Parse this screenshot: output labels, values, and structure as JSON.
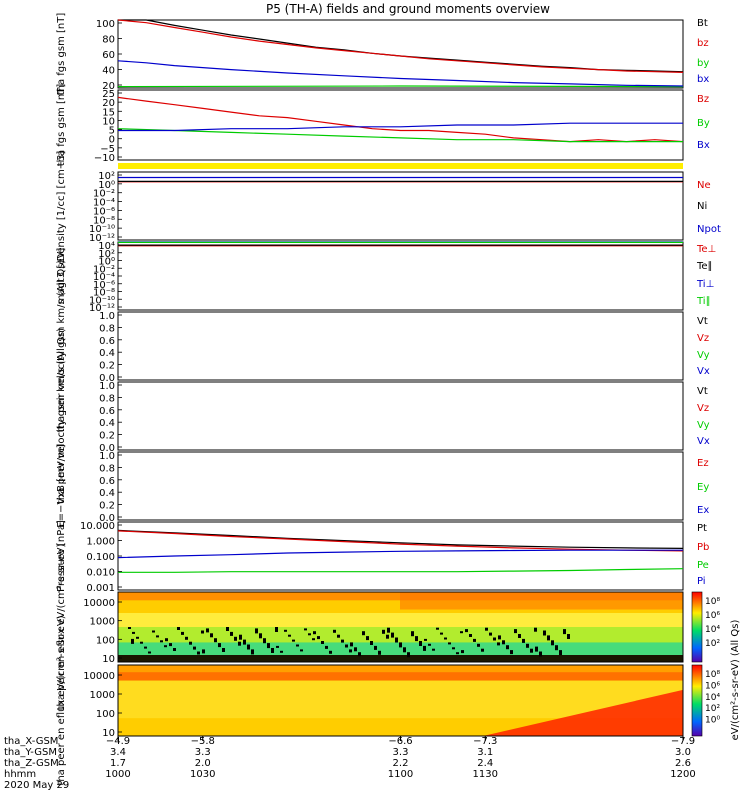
{
  "title": "P5 (TH-A) fields and ground moments overview",
  "colors": {
    "black": "#000000",
    "red": "#dd0000",
    "green": "#00cc00",
    "blue": "#0000cc",
    "yellow": "#ffee00"
  },
  "chart_data": [
    {
      "type": "line",
      "ylabel": "tha fgs gsm [nT]",
      "ylim": [
        0,
        100
      ],
      "yticks": [
        "100",
        "80",
        "60",
        "40",
        "20"
      ],
      "series": [
        {
          "name": "Bt",
          "color": "black",
          "x": [
            1000,
            1010,
            1020,
            1030,
            1040,
            1050,
            1060,
            1070,
            1080,
            1090,
            1100,
            1110,
            1120,
            1130,
            1140,
            1150,
            1160,
            1170,
            1180,
            1190,
            1200
          ],
          "values": [
            107,
            100,
            92,
            85,
            78,
            72,
            66,
            60,
            56,
            51,
            47,
            44,
            41,
            38,
            35,
            32,
            30,
            27,
            26,
            25,
            24
          ]
        },
        {
          "name": "bz",
          "color": "red",
          "x": [
            1000,
            1010,
            1020,
            1030,
            1040,
            1050,
            1060,
            1070,
            1080,
            1090,
            1100,
            1110,
            1120,
            1130,
            1140,
            1150,
            1160,
            1170,
            1180,
            1190,
            1200
          ],
          "values": [
            103,
            96,
            89,
            82,
            75,
            69,
            64,
            59,
            55,
            51,
            47,
            43,
            40,
            37,
            34,
            31,
            29,
            27,
            25,
            24,
            23
          ]
        },
        {
          "name": "by",
          "color": "green",
          "x": [
            1000,
            1100,
            1200
          ],
          "values": [
            2,
            3,
            2
          ]
        },
        {
          "name": "bx",
          "color": "blue",
          "x": [
            1000,
            1010,
            1020,
            1030,
            1040,
            1060,
            1080,
            1100,
            1120,
            1140,
            1160,
            1180,
            1200
          ],
          "values": [
            40,
            37,
            33,
            30,
            27,
            22,
            18,
            14,
            11,
            8,
            6,
            4,
            3
          ]
        }
      ]
    },
    {
      "type": "line",
      "ylabel": "tha fgs gsm [nT]",
      "ylim": [
        -13,
        25
      ],
      "yticks": [
        "25",
        "20",
        "15",
        "10",
        "5",
        "0",
        "−5",
        "−10"
      ],
      "series": [
        {
          "name": "Bz",
          "color": "red",
          "x": [
            1000,
            1010,
            1020,
            1030,
            1040,
            1050,
            1060,
            1070,
            1080,
            1090,
            1100,
            1110,
            1120,
            1130,
            1140,
            1150,
            1160,
            1170,
            1180,
            1190,
            1200
          ],
          "values": [
            21,
            19,
            17,
            15,
            13,
            11,
            10,
            8,
            6,
            4,
            3,
            3,
            2,
            1,
            -1,
            -2,
            -3,
            -2,
            -3,
            -2,
            -3
          ]
        },
        {
          "name": "By",
          "color": "green",
          "x": [
            1000,
            1020,
            1040,
            1060,
            1080,
            1100,
            1120,
            1140,
            1160,
            1180,
            1200
          ],
          "values": [
            4,
            3,
            2,
            1,
            0,
            -1,
            -2,
            -2,
            -3,
            -3,
            -3
          ]
        },
        {
          "name": "Bx",
          "color": "blue",
          "x": [
            1000,
            1020,
            1040,
            1060,
            1080,
            1100,
            1120,
            1140,
            1160,
            1180,
            1200
          ],
          "values": [
            3,
            3,
            4,
            4,
            5,
            5,
            6,
            6,
            7,
            7,
            7
          ]
        }
      ]
    },
    {
      "type": "line",
      "ylabel": "Density [1/cc] [cm−3]",
      "yscale": "log",
      "ylim": [
        1e-14,
        100
      ],
      "yticks": [
        "10²",
        "10⁰",
        "10⁻²",
        "10⁻⁴",
        "10⁻⁶",
        "10⁻⁸",
        "10⁻¹⁰",
        "10⁻¹²"
      ],
      "series": [
        {
          "name": "Ne",
          "color": "red",
          "x": [
            1000,
            1200
          ],
          "values": [
            0.5,
            0.5
          ]
        },
        {
          "name": "Ni",
          "color": "black",
          "x": [
            1000,
            1200
          ],
          "values": [
            0.6,
            0.6
          ]
        },
        {
          "name": "Npot",
          "color": "blue",
          "x": [
            1000,
            1200
          ],
          "values": [
            5,
            5
          ]
        }
      ]
    },
    {
      "type": "line",
      "ylabel": "magt3 [eV]",
      "yscale": "log",
      "ylim": [
        1e-14,
        10000
      ],
      "yticks": [
        "10⁴",
        "10²",
        "10⁰",
        "10⁻²",
        "10⁻⁴",
        "10⁻⁶",
        "10⁻⁸",
        "10⁻¹⁰",
        "10⁻¹²"
      ],
      "series": [
        {
          "name": "Te⊥",
          "color": "red",
          "x": [
            1000,
            1200
          ],
          "values": [
            1000,
            1000
          ]
        },
        {
          "name": "Te∥",
          "color": "black",
          "x": [
            1000,
            1200
          ],
          "values": [
            1500,
            1500
          ]
        },
        {
          "name": "Ti⊥",
          "color": "blue",
          "x": [
            1000,
            1200
          ],
          "values": [
            10000,
            10000
          ]
        },
        {
          "name": "Ti∥",
          "color": "green",
          "x": [
            1000,
            1200
          ],
          "values": [
            8000,
            8000
          ]
        }
      ]
    },
    {
      "type": "line",
      "ylabel": "tha peir velocity gsm km/s (All Qs)",
      "ylim": [
        0,
        1
      ],
      "yticks": [
        "1.0",
        "0.8",
        "0.6",
        "0.4",
        "0.2",
        "0.0"
      ],
      "series": [
        {
          "name": "Vt",
          "color": "black"
        },
        {
          "name": "Vz",
          "color": "red"
        },
        {
          "name": "Vy",
          "color": "green"
        },
        {
          "name": "Vx",
          "color": "blue"
        }
      ]
    },
    {
      "type": "line",
      "ylabel": "tha peer velocity gsm km/s (All Qs)",
      "ylim": [
        0,
        1
      ],
      "yticks": [
        "1.0",
        "0.8",
        "0.6",
        "0.4",
        "0.2",
        "0.0"
      ],
      "series": [
        {
          "name": "Vt",
          "color": "black"
        },
        {
          "name": "Vz",
          "color": "red"
        },
        {
          "name": "Vy",
          "color": "green"
        },
        {
          "name": "Vx",
          "color": "blue"
        }
      ]
    },
    {
      "type": "line",
      "ylabel": "E=−VxB [mV/m]",
      "ylim": [
        0,
        1
      ],
      "yticks": [
        "1.0",
        "0.8",
        "0.6",
        "0.4",
        "0.2",
        "0.0"
      ],
      "series": [
        {
          "name": "Ez",
          "color": "red"
        },
        {
          "name": "Ey",
          "color": "green"
        },
        {
          "name": "Ex",
          "color": "blue"
        }
      ]
    },
    {
      "type": "line",
      "ylabel": "Pressure [nPa]",
      "yscale": "log",
      "ylim": [
        0.001,
        10
      ],
      "yticks": [
        "10.000",
        "1.000",
        "0.100",
        "0.010",
        "0.001"
      ],
      "series": [
        {
          "name": "Pt",
          "color": "black",
          "x": [
            1000,
            1020,
            1040,
            1060,
            1080,
            1100,
            1120,
            1140,
            1160,
            1180,
            1200
          ],
          "values": [
            3.2,
            2.3,
            1.6,
            1.1,
            0.8,
            0.6,
            0.45,
            0.38,
            0.33,
            0.3,
            0.28
          ]
        },
        {
          "name": "Pb",
          "color": "red",
          "x": [
            1000,
            1020,
            1040,
            1060,
            1080,
            1100,
            1120,
            1140,
            1160,
            1180,
            1200
          ],
          "values": [
            3.0,
            2.1,
            1.4,
            1.0,
            0.7,
            0.5,
            0.38,
            0.3,
            0.25,
            0.22,
            0.2
          ]
        },
        {
          "name": "Pe",
          "color": "green",
          "x": [
            1000,
            1020,
            1040,
            1060,
            1080,
            1100,
            1120,
            1140,
            1160,
            1180,
            1200
          ],
          "values": [
            0.011,
            0.011,
            0.012,
            0.012,
            0.012,
            0.012,
            0.012,
            0.013,
            0.014,
            0.016,
            0.018
          ]
        },
        {
          "name": "Pi",
          "color": "blue",
          "x": [
            1000,
            1020,
            1040,
            1060,
            1080,
            1100,
            1120,
            1140,
            1160,
            1180,
            1200
          ],
          "values": [
            0.08,
            0.1,
            0.12,
            0.15,
            0.17,
            0.19,
            0.2,
            0.21,
            0.22,
            0.22,
            0.22
          ]
        }
      ]
    },
    {
      "type": "heatmap",
      "ylabel": "tha peir en eflux eV/(cm²-s-sr-eV)",
      "yscale": "log",
      "ylim": [
        5,
        20000
      ],
      "yticks": [
        "10000",
        "1000",
        "100",
        "10"
      ],
      "colorbar_label": "eV/(cm²-s-sr-eV) (All Qs)",
      "colorbar_ticks": [
        "10⁸",
        "10⁶",
        "10⁴",
        "10²"
      ]
    },
    {
      "type": "heatmap",
      "ylabel": "tha peer en eflux eV/(cm²-s-sr-eV)",
      "yscale": "log",
      "ylim": [
        5,
        20000
      ],
      "yticks": [
        "10000",
        "1000",
        "100",
        "10"
      ],
      "colorbar_label": "eV/(cm²-s-sr-eV) (All Qs)",
      "colorbar_ticks": [
        "10⁸",
        "10⁶",
        "10⁴",
        "10²",
        "10⁰"
      ]
    }
  ],
  "time_axis": {
    "rows": [
      {
        "label": "tha_X-GSM",
        "values": [
          "−4.9",
          "−5.8",
          "−6.6",
          "−7.3",
          "−7.9"
        ]
      },
      {
        "label": "tha_Y-GSM",
        "values": [
          "3.4",
          "3.3",
          "3.3",
          "3.1",
          "3.0"
        ]
      },
      {
        "label": "tha_Z-GSM",
        "values": [
          "1.7",
          "2.0",
          "2.2",
          "2.4",
          "2.6"
        ]
      },
      {
        "label": "hhmm",
        "values": [
          "1000",
          "1030",
          "1100",
          "1130",
          "1200"
        ]
      }
    ],
    "date": "2020 May 29"
  }
}
